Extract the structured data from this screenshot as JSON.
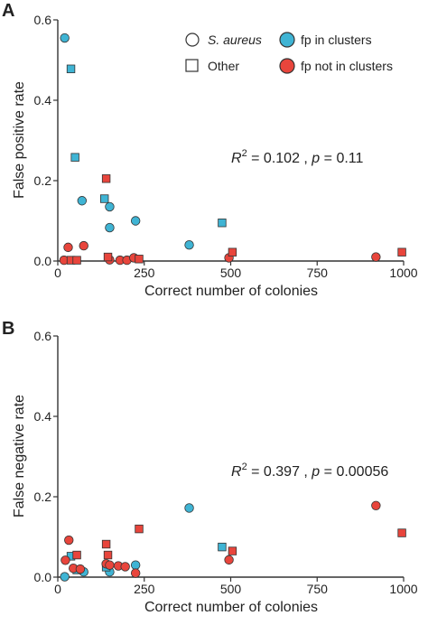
{
  "chart_data": [
    {
      "type": "scatter",
      "panel": "A",
      "xlabel": "Correct number of colonies",
      "ylabel": "False positive rate",
      "xlim": [
        0,
        1000
      ],
      "ylim": [
        0,
        0.6
      ],
      "xticks": [
        0,
        250,
        500,
        750,
        1000
      ],
      "yticks": [
        0.0,
        0.2,
        0.4,
        0.6
      ],
      "ytick_labels": [
        "0.0",
        "0.2",
        "0.4",
        "0.6"
      ],
      "annotation": {
        "r2_label": "R",
        "r2_sup": "2",
        "r2_value": " = 0.102 , ",
        "p_label": "p",
        "p_value": " = 0.11"
      },
      "series": [
        {
          "name": "fp in clusters",
          "color": "#3fb4d4",
          "shape": "circle",
          "points": [
            [
              20,
              0.555
            ],
            [
              70,
              0.15
            ],
            [
              150,
              0.135
            ],
            [
              150,
              0.083
            ],
            [
              225,
              0.1
            ],
            [
              380,
              0.04
            ]
          ]
        },
        {
          "name": "fp in clusters",
          "color": "#3fb4d4",
          "shape": "square",
          "points": [
            [
              38,
              0.478
            ],
            [
              50,
              0.258
            ],
            [
              135,
              0.155
            ],
            [
              475,
              0.095
            ]
          ]
        },
        {
          "name": "fp not in clusters",
          "color": "#e8453c",
          "shape": "circle",
          "points": [
            [
              18,
              0.002
            ],
            [
              30,
              0.034
            ],
            [
              75,
              0.038
            ],
            [
              150,
              0.003
            ],
            [
              180,
              0.002
            ],
            [
              200,
              0.002
            ],
            [
              220,
              0.008
            ],
            [
              495,
              0.008
            ],
            [
              920,
              0.01
            ]
          ]
        },
        {
          "name": "fp not in clusters",
          "color": "#e8453c",
          "shape": "square",
          "points": [
            [
              38,
              0.002
            ],
            [
              55,
              0.002
            ],
            [
              140,
              0.205
            ],
            [
              145,
              0.01
            ],
            [
              235,
              0.005
            ],
            [
              505,
              0.022
            ],
            [
              995,
              0.022
            ]
          ]
        }
      ]
    },
    {
      "type": "scatter",
      "panel": "B",
      "xlabel": "Correct number of colonies",
      "ylabel": "False negative rate",
      "xlim": [
        0,
        1000
      ],
      "ylim": [
        0,
        0.6
      ],
      "xticks": [
        0,
        250,
        500,
        750,
        1000
      ],
      "yticks": [
        0.0,
        0.2,
        0.4,
        0.6
      ],
      "ytick_labels": [
        "0.0",
        "0.2",
        "0.4",
        "0.6"
      ],
      "annotation": {
        "r2_label": "R",
        "r2_sup": "2",
        "r2_value": " = 0.397 , ",
        "p_label": "p",
        "p_value": " = 0.00056"
      },
      "series": [
        {
          "name": "fp in clusters",
          "color": "#3fb4d4",
          "shape": "circle",
          "points": [
            [
              20,
              0.001
            ],
            [
              75,
              0.013
            ],
            [
              150,
              0.013
            ],
            [
              225,
              0.03
            ],
            [
              380,
              0.172
            ]
          ]
        },
        {
          "name": "fp in clusters",
          "color": "#3fb4d4",
          "shape": "square",
          "points": [
            [
              38,
              0.052
            ],
            [
              55,
              0.018
            ],
            [
              140,
              0.025
            ],
            [
              475,
              0.075
            ]
          ]
        },
        {
          "name": "fp not in clusters",
          "color": "#e8453c",
          "shape": "circle",
          "points": [
            [
              22,
              0.042
            ],
            [
              32,
              0.092
            ],
            [
              45,
              0.022
            ],
            [
              65,
              0.02
            ],
            [
              140,
              0.033
            ],
            [
              150,
              0.03
            ],
            [
              175,
              0.028
            ],
            [
              195,
              0.026
            ],
            [
              225,
              0.01
            ],
            [
              495,
              0.043
            ],
            [
              920,
              0.178
            ]
          ]
        },
        {
          "name": "fp not in clusters",
          "color": "#e8453c",
          "shape": "square",
          "points": [
            [
              55,
              0.055
            ],
            [
              140,
              0.082
            ],
            [
              145,
              0.055
            ],
            [
              235,
              0.12
            ],
            [
              505,
              0.065
            ],
            [
              995,
              0.11
            ]
          ]
        }
      ]
    }
  ],
  "legend": {
    "items": [
      {
        "label": "S. aureus",
        "italic": true,
        "marker": "circle",
        "color": "#ffffff"
      },
      {
        "label": "fp in clusters",
        "italic": false,
        "marker": "circle",
        "color": "#3fb4d4"
      },
      {
        "label": "Other",
        "italic": false,
        "marker": "square",
        "color": "#ffffff"
      },
      {
        "label": "fp not in clusters",
        "italic": false,
        "marker": "circle",
        "color": "#e8453c"
      }
    ]
  }
}
